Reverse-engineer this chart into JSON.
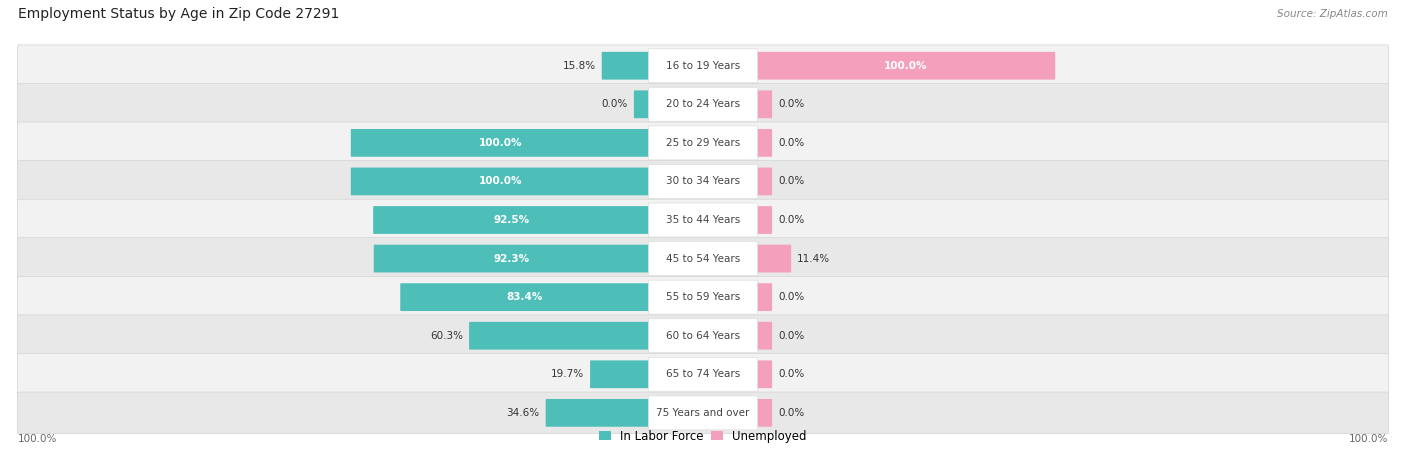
{
  "title": "Employment Status by Age in Zip Code 27291",
  "source": "Source: ZipAtlas.com",
  "categories": [
    "16 to 19 Years",
    "20 to 24 Years",
    "25 to 29 Years",
    "30 to 34 Years",
    "35 to 44 Years",
    "45 to 54 Years",
    "55 to 59 Years",
    "60 to 64 Years",
    "65 to 74 Years",
    "75 Years and over"
  ],
  "labor_force": [
    15.8,
    0.0,
    100.0,
    100.0,
    92.5,
    92.3,
    83.4,
    60.3,
    19.7,
    34.6
  ],
  "unemployed": [
    100.0,
    0.0,
    0.0,
    0.0,
    0.0,
    11.4,
    0.0,
    0.0,
    0.0,
    0.0
  ],
  "labor_force_color": "#4DBFB8",
  "unemployed_color": "#F4A0BC",
  "row_bg_even": "#F2F2F2",
  "row_bg_odd": "#E8E8E8",
  "title_fontsize": 10,
  "label_fontsize": 7.5,
  "background_color": "#FFFFFF",
  "left_axis_label": "100.0%",
  "right_axis_label": "100.0%",
  "bar_stub": 5.0
}
